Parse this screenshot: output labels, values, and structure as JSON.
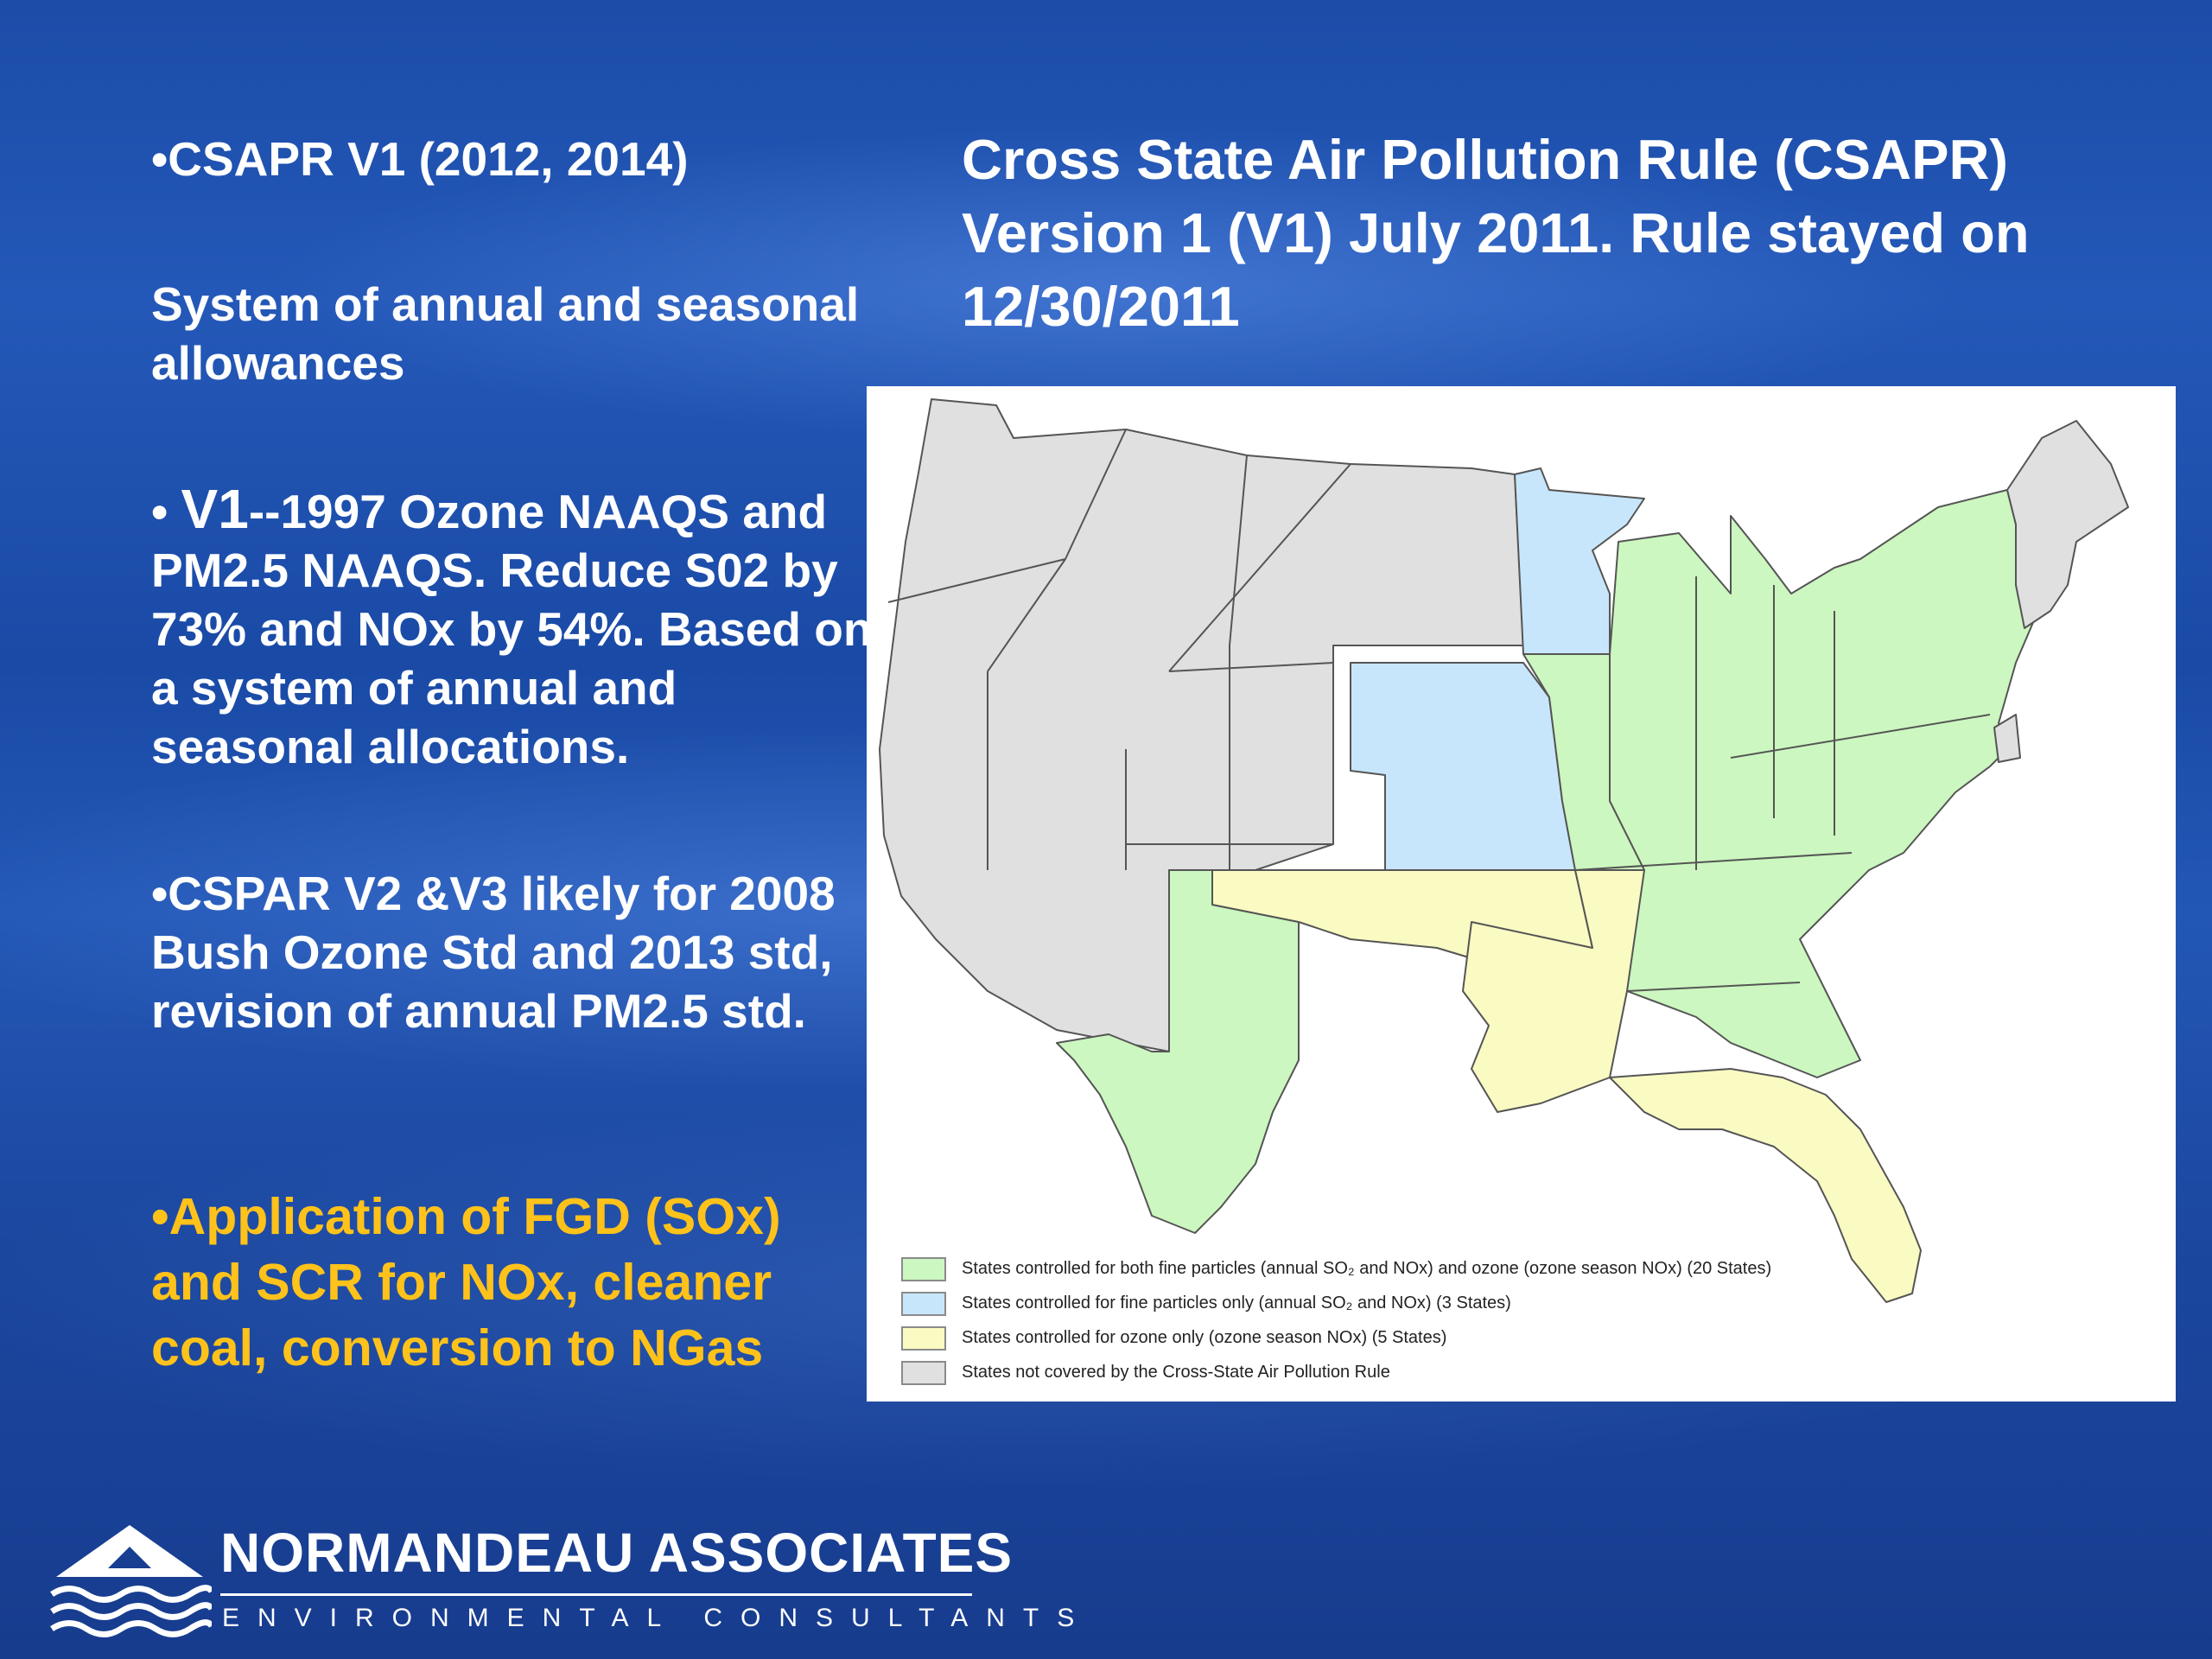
{
  "left_column": {
    "bullet1": "•CSAPR V1 (2012, 2014)",
    "para1": "System of annual and seasonal allowances",
    "bullet2_prefix": "• ",
    "bullet2_big": "V1",
    "bullet2_rest": "--1997 Ozone NAAQS and PM2.5 NAAQS.  Reduce S02 by 73% and NOx by 54%. Based on a system of annual and seasonal allocations.",
    "bullet3": "•CSPAR V2  &V3   likely for 2008 Bush Ozone Std and 2013 std,  revision of annual PM2.5 std.",
    "bullet4": "•Application of FGD (SOx) and SCR for NOx, cleaner coal, conversion to NGas"
  },
  "title": "Cross State Air Pollution Rule (CSAPR)  Version 1 (V1)  July 2011.  Rule stayed on 12/30/2011",
  "colors": {
    "both": "#ccf7c0",
    "fine_only": "#c8e6fb",
    "ozone_only": "#fafac3",
    "not_covered": "#e0e0e0",
    "bullet4_text": "#ffc21a"
  },
  "map": {
    "legend": [
      {
        "color_key": "both",
        "text": "States controlled for both fine particles (annual SO₂ and NOx) and ozone (ozone season NOx) (20 States)"
      },
      {
        "color_key": "fine_only",
        "text": "States controlled for fine particles only (annual SO₂ and NOx) (3 States)"
      },
      {
        "color_key": "ozone_only",
        "text": "States controlled for ozone only (ozone season NOx) (5 States)"
      },
      {
        "color_key": "not_covered",
        "text": "States not covered by the Cross-State Air Pollution Rule"
      }
    ]
  },
  "logo": {
    "name": "NORMANDEAU ASSOCIATES",
    "subtitle": "ENVIRONMENTAL CONSULTANTS"
  }
}
